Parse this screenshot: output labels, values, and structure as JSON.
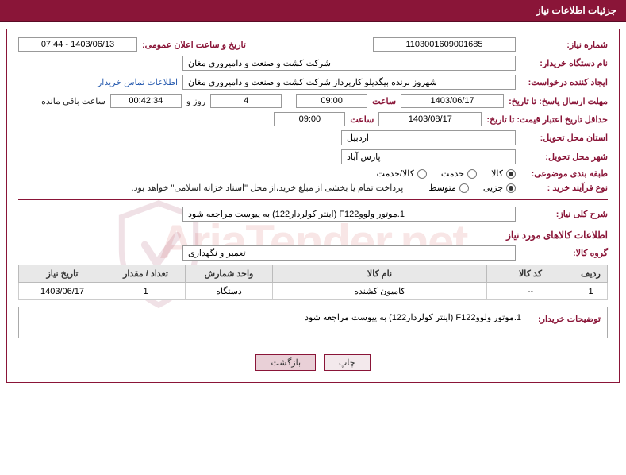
{
  "colors": {
    "primary": "#8a1538",
    "header_text": "#ffffff",
    "link": "#2a5db0",
    "th_bg": "#e8e8e8",
    "border": "#999999"
  },
  "header": {
    "title": "جزئیات اطلاعات نیاز"
  },
  "fields": {
    "need_number_label": "شماره نیاز:",
    "need_number": "1103001609001685",
    "announce_label": "تاریخ و ساعت اعلان عمومی:",
    "announce_value": "1403/06/13 - 07:44",
    "buyer_label": "نام دستگاه خریدار:",
    "buyer_value": "شرکت کشت و صنعت و دامپروری مغان",
    "creator_label": "ایجاد کننده درخواست:",
    "creator_value": "شهروز برنده بیگدیلو کارپرداز شرکت کشت و صنعت و دامپروری مغان",
    "contact_link": "اطلاعات تماس خریدار",
    "deadline_label": "مهلت ارسال پاسخ: تا تاریخ:",
    "deadline_date": "1403/06/17",
    "hour_label": "ساعت",
    "deadline_hour": "09:00",
    "days_count": "4",
    "days_and": "روز و",
    "countdown": "00:42:34",
    "remaining": "ساعت باقی مانده",
    "validity_label": "حداقل تاریخ اعتبار قیمت: تا تاریخ:",
    "validity_date": "1403/08/17",
    "validity_hour": "09:00",
    "province_label": "استان محل تحویل:",
    "province_value": "اردبیل",
    "city_label": "شهر محل تحویل:",
    "city_value": "پارس آباد",
    "category_label": "طبقه بندی موضوعی:",
    "cat_kala": "کالا",
    "cat_khadamat": "خدمت",
    "cat_kalakhadamat": "کالا/خدمت",
    "purchase_type_label": "نوع فرآیند خرید :",
    "pt_jozi": "جزیی",
    "pt_motevaset": "متوسط",
    "payment_note": "پرداخت تمام یا بخشی از مبلغ خرید،از محل \"اسناد خزانه اسلامی\" خواهد بود.",
    "summary_label": "شرح کلی نیاز:",
    "summary_value": "1.موتور ولووF122 (اینتر کولردار122) به پیوست مراجعه شود",
    "goods_section": "اطلاعات کالاهای مورد نیاز",
    "group_label": "گروه کالا:",
    "group_value": "تعمیر و نگهداری",
    "buyer_desc_label": "توضیحات خریدار:",
    "buyer_desc_value": "1.موتور ولووF122 (اینتر کولردار122) به پیوست مراجعه شود"
  },
  "table": {
    "headers": {
      "row": "ردیف",
      "code": "کد کالا",
      "name": "نام کالا",
      "unit": "واحد شمارش",
      "qty": "تعداد / مقدار",
      "date": "تاریخ نیاز"
    },
    "rows": [
      {
        "row": "1",
        "code": "--",
        "name": "کامیون کشنده",
        "unit": "دستگاه",
        "qty": "1",
        "date": "1403/06/17"
      }
    ]
  },
  "buttons": {
    "print": "چاپ",
    "back": "بازگشت"
  },
  "widths": {
    "need_number": 180,
    "announce": 150,
    "buyer": 420,
    "creator": 420,
    "date": 130,
    "hour": 90,
    "days": 90,
    "countdown": 90,
    "province": 220,
    "summary": 420,
    "group": 420
  }
}
